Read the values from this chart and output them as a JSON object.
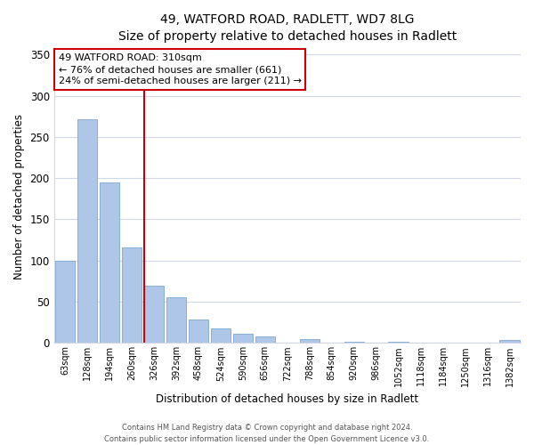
{
  "title": "49, WATFORD ROAD, RADLETT, WD7 8LG",
  "subtitle": "Size of property relative to detached houses in Radlett",
  "xlabel": "Distribution of detached houses by size in Radlett",
  "ylabel": "Number of detached properties",
  "bar_labels": [
    "63sqm",
    "128sqm",
    "194sqm",
    "260sqm",
    "326sqm",
    "392sqm",
    "458sqm",
    "524sqm",
    "590sqm",
    "656sqm",
    "722sqm",
    "788sqm",
    "854sqm",
    "920sqm",
    "986sqm",
    "1052sqm",
    "1118sqm",
    "1184sqm",
    "1250sqm",
    "1316sqm",
    "1382sqm"
  ],
  "bar_values": [
    100,
    271,
    195,
    116,
    70,
    55,
    29,
    18,
    11,
    8,
    0,
    5,
    0,
    1,
    0,
    1,
    0,
    0,
    0,
    0,
    4
  ],
  "bar_color": "#aec6e8",
  "bar_edge_color": "#7ba7d0",
  "vline_index": 4,
  "vline_color": "#cc0000",
  "ylim": [
    0,
    355
  ],
  "yticks": [
    0,
    50,
    100,
    150,
    200,
    250,
    300,
    350
  ],
  "annotation_title": "49 WATFORD ROAD: 310sqm",
  "annotation_line1": "← 76% of detached houses are smaller (661)",
  "annotation_line2": "24% of semi-detached houses are larger (211) →",
  "annotation_box_color": "#ffffff",
  "annotation_box_edge": "#cc0000",
  "footer_line1": "Contains HM Land Registry data © Crown copyright and database right 2024.",
  "footer_line2": "Contains public sector information licensed under the Open Government Licence v3.0.",
  "background_color": "#ffffff",
  "grid_color": "#d0d8e8"
}
